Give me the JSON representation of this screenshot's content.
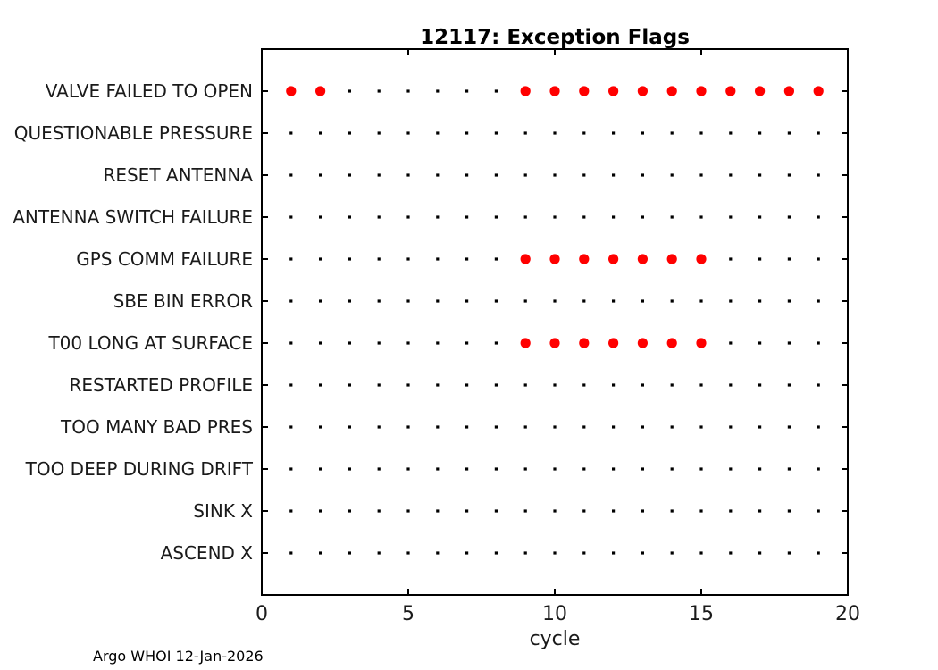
{
  "title": "12117: Exception Flags",
  "footer": "Argo WHOI 12-Jan-2026",
  "colors": {
    "flag_marker": "#ff0000",
    "base_marker": "#000000",
    "axis": "#000000",
    "tick_label": "#1a1a1a",
    "background": "#ffffff"
  },
  "chart_data": {
    "type": "scatter",
    "title": "12117: Exception Flags",
    "xlabel": "cycle",
    "ylabel": "",
    "xlim": [
      0,
      20
    ],
    "xticks": [
      0,
      5,
      10,
      15,
      20
    ],
    "cycle_first": 1,
    "cycle_last": 19,
    "grid": false,
    "legend": "none",
    "marker_styles": {
      "flagged": "large filled red circle",
      "not_flagged": "small black dot"
    },
    "categories": [
      {
        "label": "VALVE FAILED TO OPEN",
        "flagged_cycles": [
          1,
          2,
          9,
          10,
          11,
          12,
          13,
          14,
          15,
          16,
          17,
          18,
          19
        ]
      },
      {
        "label": "QUESTIONABLE PRESSURE",
        "flagged_cycles": []
      },
      {
        "label": "RESET ANTENNA",
        "flagged_cycles": []
      },
      {
        "label": "ANTENNA SWITCH FAILURE",
        "flagged_cycles": []
      },
      {
        "label": "GPS COMM FAILURE",
        "flagged_cycles": [
          9,
          10,
          11,
          12,
          13,
          14,
          15
        ]
      },
      {
        "label": "SBE BIN ERROR",
        "flagged_cycles": []
      },
      {
        "label": "T00 LONG AT SURFACE",
        "flagged_cycles": [
          9,
          10,
          11,
          12,
          13,
          14,
          15
        ]
      },
      {
        "label": "RESTARTED PROFILE",
        "flagged_cycles": []
      },
      {
        "label": "TOO MANY BAD PRES",
        "flagged_cycles": []
      },
      {
        "label": "TOO DEEP DURING DRIFT",
        "flagged_cycles": []
      },
      {
        "label": "SINK X",
        "flagged_cycles": []
      },
      {
        "label": "ASCEND X",
        "flagged_cycles": []
      }
    ]
  }
}
